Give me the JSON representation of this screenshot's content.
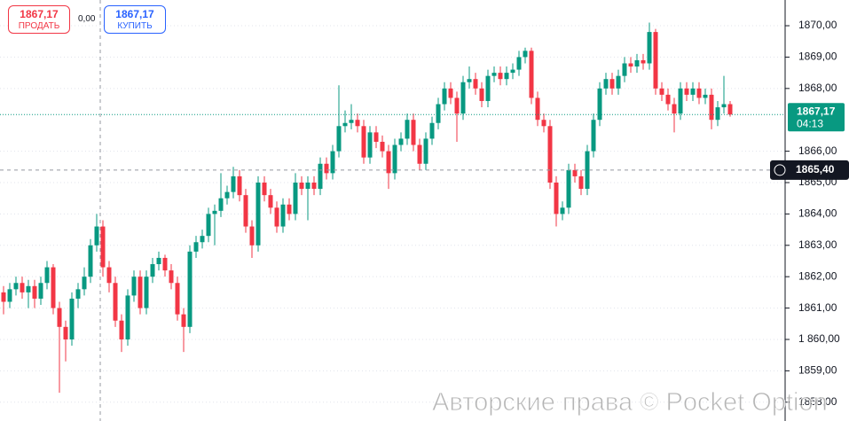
{
  "chart_data": {
    "type": "candlestick",
    "up_color": "#089981",
    "down_color": "#f23645",
    "grid": true,
    "ylim": [
      1857.4,
      1870.82
    ],
    "yticks": [
      {
        "value": 1858,
        "label": "1858,00"
      },
      {
        "value": 1859,
        "label": "1859,00"
      },
      {
        "value": 1860,
        "label": "1 860,00"
      },
      {
        "value": 1861,
        "label": "1861,00"
      },
      {
        "value": 1862,
        "label": "1862,00"
      },
      {
        "value": 1863,
        "label": "1863,00"
      },
      {
        "value": 1864,
        "label": "1864,00"
      },
      {
        "value": 1865,
        "label": "1865,00"
      },
      {
        "value": 1866,
        "label": "1866,00"
      },
      {
        "value": 1868,
        "label": "1868,00"
      },
      {
        "value": 1869,
        "label": "1869,00"
      },
      {
        "value": 1870,
        "label": "1870,00"
      }
    ],
    "open": [
      1861.5,
      1861.2,
      1861.6,
      1861.8,
      1861.5,
      1861.7,
      1861.3,
      1861.8,
      1862.3,
      1861.0,
      1860.4,
      1860.0,
      1861.3,
      1861.6,
      1862.0,
      1863.0,
      1863.6,
      1862.3,
      1861.8,
      1860.6,
      1860.0,
      1861.4,
      1862.0,
      1861.0,
      1862.0,
      1862.4,
      1862.6,
      1862.2,
      1861.8,
      1860.8,
      1860.4,
      1862.8,
      1863.1,
      1863.3,
      1864.0,
      1864.1,
      1864.5,
      1864.7,
      1865.2,
      1864.6,
      1863.6,
      1863.0,
      1865.0,
      1864.6,
      1864.2,
      1863.6,
      1864.3,
      1864.0,
      1865.0,
      1864.8,
      1865.0,
      1864.8,
      1865.6,
      1865.3,
      1866.0,
      1866.8,
      1866.9,
      1867.0,
      1866.8,
      1865.8,
      1866.6,
      1866.3,
      1866.0,
      1865.3,
      1866.2,
      1866.4,
      1867.0,
      1866.2,
      1865.6,
      1866.4,
      1866.9,
      1867.5,
      1868.0,
      1867.7,
      1867.2,
      1868.2,
      1868.3,
      1868.0,
      1867.6,
      1868.4,
      1868.5,
      1868.3,
      1868.5,
      1868.6,
      1869.0,
      1869.2,
      1867.7,
      1867.0,
      1866.8,
      1865.0,
      1864.0,
      1864.2,
      1865.4,
      1865.2,
      1864.8,
      1866.0,
      1867.0,
      1868.0,
      1868.3,
      1868.0,
      1868.4,
      1868.8,
      1868.7,
      1868.9,
      1868.8,
      1869.8,
      1868.0,
      1867.8,
      1867.5,
      1867.2,
      1868.0,
      1867.8,
      1868.0,
      1867.7,
      1867.8,
      1867.0,
      1867.4,
      1867.5
    ],
    "high": [
      1861.7,
      1861.8,
      1862.0,
      1862.0,
      1861.9,
      1861.9,
      1862.0,
      1862.5,
      1862.4,
      1861.2,
      1860.6,
      1861.5,
      1861.8,
      1862.3,
      1863.2,
      1864.0,
      1863.8,
      1862.5,
      1862.0,
      1860.8,
      1861.6,
      1862.2,
      1862.2,
      1862.2,
      1862.6,
      1862.8,
      1862.7,
      1862.4,
      1862.0,
      1861.0,
      1863.0,
      1863.3,
      1863.5,
      1864.2,
      1864.3,
      1865.3,
      1864.9,
      1865.5,
      1865.4,
      1864.8,
      1863.8,
      1865.2,
      1865.2,
      1864.8,
      1864.4,
      1864.5,
      1864.5,
      1865.3,
      1865.2,
      1865.2,
      1865.2,
      1865.8,
      1865.8,
      1866.2,
      1868.1,
      1867.3,
      1867.5,
      1867.2,
      1867.0,
      1866.8,
      1866.8,
      1866.5,
      1866.2,
      1866.4,
      1866.6,
      1867.2,
      1867.2,
      1866.4,
      1866.6,
      1867.1,
      1867.7,
      1868.2,
      1868.2,
      1867.9,
      1868.4,
      1868.7,
      1868.5,
      1868.2,
      1868.6,
      1868.7,
      1868.7,
      1868.7,
      1868.8,
      1869.2,
      1869.3,
      1869.3,
      1867.9,
      1867.2,
      1867.0,
      1865.2,
      1864.4,
      1865.6,
      1865.6,
      1865.4,
      1866.2,
      1867.2,
      1868.2,
      1868.5,
      1868.5,
      1868.6,
      1869.0,
      1869.0,
      1869.1,
      1869.1,
      1870.1,
      1869.9,
      1868.2,
      1868.0,
      1867.7,
      1868.2,
      1868.2,
      1868.2,
      1868.2,
      1868.0,
      1868.0,
      1867.6,
      1868.4,
      1867.6
    ],
    "low": [
      1860.8,
      1861.0,
      1861.4,
      1861.3,
      1861.0,
      1861.0,
      1861.1,
      1861.6,
      1860.8,
      1858.3,
      1859.3,
      1859.8,
      1861.0,
      1861.4,
      1861.8,
      1862.8,
      1862.0,
      1861.5,
      1860.4,
      1859.6,
      1859.8,
      1861.2,
      1860.8,
      1860.8,
      1861.8,
      1862.2,
      1862.0,
      1861.6,
      1860.6,
      1859.6,
      1860.2,
      1862.6,
      1862.9,
      1863.1,
      1863.0,
      1863.9,
      1864.3,
      1864.5,
      1864.4,
      1863.4,
      1862.6,
      1862.8,
      1864.4,
      1864.0,
      1863.4,
      1863.4,
      1863.8,
      1863.8,
      1864.6,
      1863.8,
      1864.6,
      1864.6,
      1865.1,
      1865.1,
      1865.8,
      1866.6,
      1866.7,
      1866.6,
      1865.6,
      1865.6,
      1866.1,
      1865.8,
      1864.8,
      1865.1,
      1866.0,
      1866.2,
      1866.0,
      1865.4,
      1865.4,
      1866.2,
      1866.7,
      1867.3,
      1867.5,
      1866.3,
      1867.0,
      1868.0,
      1867.8,
      1867.4,
      1867.4,
      1868.2,
      1868.1,
      1868.1,
      1868.3,
      1868.4,
      1868.8,
      1867.5,
      1866.8,
      1866.6,
      1864.8,
      1863.6,
      1863.8,
      1864.0,
      1865.0,
      1864.6,
      1864.6,
      1865.8,
      1866.8,
      1867.8,
      1867.8,
      1867.8,
      1868.2,
      1868.5,
      1868.5,
      1868.6,
      1868.6,
      1867.8,
      1867.6,
      1867.3,
      1866.6,
      1867.0,
      1867.6,
      1867.6,
      1867.5,
      1867.5,
      1866.7,
      1866.8,
      1867.2,
      1867.1
    ],
    "close": [
      1861.2,
      1861.6,
      1861.8,
      1861.5,
      1861.7,
      1861.3,
      1861.8,
      1862.3,
      1861.0,
      1860.4,
      1860.0,
      1861.3,
      1861.6,
      1862.0,
      1863.0,
      1863.6,
      1862.3,
      1861.8,
      1860.6,
      1860.0,
      1861.4,
      1862.0,
      1861.0,
      1862.0,
      1862.4,
      1862.6,
      1862.2,
      1861.8,
      1860.8,
      1860.4,
      1862.8,
      1863.1,
      1863.3,
      1864.0,
      1864.1,
      1864.5,
      1864.7,
      1865.2,
      1864.6,
      1863.6,
      1863.0,
      1865.0,
      1864.6,
      1864.2,
      1863.6,
      1864.3,
      1864.0,
      1865.0,
      1864.8,
      1865.0,
      1864.8,
      1865.6,
      1865.3,
      1866.0,
      1866.8,
      1866.9,
      1867.0,
      1866.8,
      1865.8,
      1866.6,
      1866.3,
      1866.0,
      1865.3,
      1866.2,
      1866.4,
      1867.0,
      1866.2,
      1865.6,
      1866.4,
      1866.9,
      1867.5,
      1868.0,
      1867.7,
      1867.2,
      1868.2,
      1868.3,
      1868.0,
      1867.6,
      1868.4,
      1868.5,
      1868.3,
      1868.5,
      1868.6,
      1869.0,
      1869.2,
      1867.7,
      1867.0,
      1866.8,
      1865.0,
      1864.0,
      1864.2,
      1865.4,
      1865.2,
      1864.8,
      1866.0,
      1867.0,
      1868.0,
      1868.3,
      1868.0,
      1868.4,
      1868.8,
      1868.7,
      1868.9,
      1868.8,
      1869.8,
      1868.0,
      1867.8,
      1867.5,
      1867.2,
      1868.0,
      1867.8,
      1868.0,
      1867.7,
      1867.8,
      1867.0,
      1867.4,
      1867.5,
      1867.17
    ],
    "last_price": {
      "value": 1867.17,
      "label": "1867,17",
      "timer": "04:13"
    },
    "crosshair": {
      "value": 1865.4,
      "label": "1865,40"
    }
  },
  "ui": {
    "sell_price": "1867,17",
    "sell_label": "ПРОДАТЬ",
    "spread": "0,00",
    "buy_price": "1867,17",
    "buy_label": "КУПИТЬ",
    "watermark": "Авторские права © Pocket Option"
  }
}
